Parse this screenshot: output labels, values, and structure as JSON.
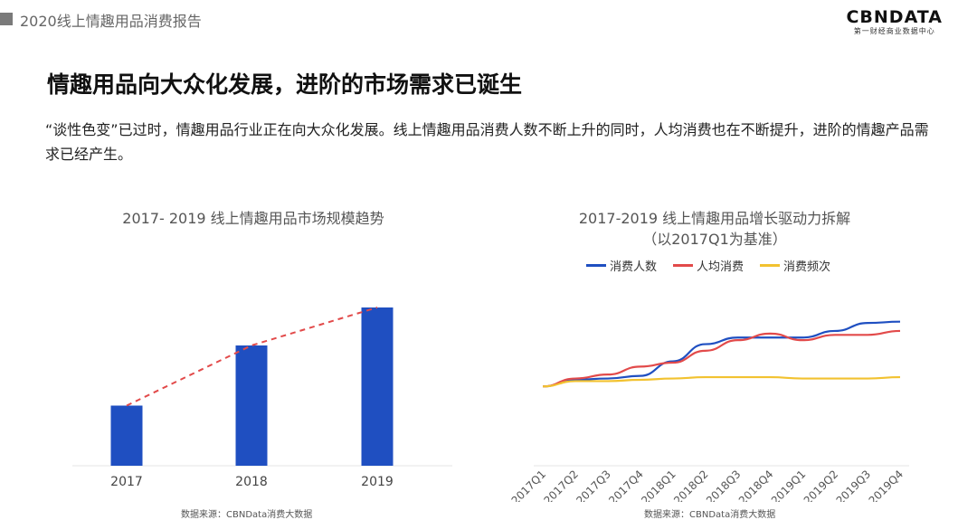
{
  "header": {
    "title": "2020线上情趣用品消费报告"
  },
  "logo": {
    "main": "CBNDATA",
    "sub": "第一财经商业数据中心"
  },
  "main_title": "情趣用品向大众化发展，进阶的市场需求已诞生",
  "description": "“谈性色变”已过时，情趣用品行业正在向大众化发展。线上情趣用品消费人数不断上升的同时，人均消费也在不断提升，进阶的情趣产品需求已经产生。",
  "colors": {
    "bar": "#1f4fc1",
    "trend": "#e24a4a",
    "people": "#1f4fc1",
    "per_capita": "#e24a4a",
    "frequency": "#f2c230"
  },
  "chart_data": [
    {
      "type": "bar",
      "title": "2017- 2019 线上情趣用品市场规模趋势",
      "categories": [
        "2017",
        "2018",
        "2019"
      ],
      "values": [
        38,
        76,
        100
      ],
      "trend_line": true,
      "source": "数据来源：CBNData消费大数据"
    },
    {
      "type": "line",
      "title": "2017-2019 线上情趣用品增长驱动力拆解",
      "subtitle": "（以2017Q1为基准）",
      "categories": [
        "2017Q1",
        "2017Q2",
        "2017Q3",
        "2017Q4",
        "2018Q1",
        "2018Q2",
        "2018Q3",
        "2018Q4",
        "2019Q1",
        "2019Q2",
        "2019Q3",
        "2019Q4"
      ],
      "series": [
        {
          "name": "消费人数",
          "values": [
            1.0,
            1.05,
            1.06,
            1.08,
            1.19,
            1.32,
            1.37,
            1.37,
            1.37,
            1.42,
            1.48,
            1.49
          ]
        },
        {
          "name": "人均消费",
          "values": [
            1.0,
            1.06,
            1.09,
            1.15,
            1.18,
            1.27,
            1.35,
            1.4,
            1.35,
            1.39,
            1.39,
            1.42
          ]
        },
        {
          "name": "消费频次",
          "values": [
            1.0,
            1.04,
            1.04,
            1.05,
            1.06,
            1.07,
            1.07,
            1.07,
            1.06,
            1.06,
            1.06,
            1.07
          ]
        }
      ],
      "ylim": [
        0.4,
        1.7
      ],
      "legend_position": "top",
      "source": "数据来源：CBNData消费大数据"
    }
  ]
}
